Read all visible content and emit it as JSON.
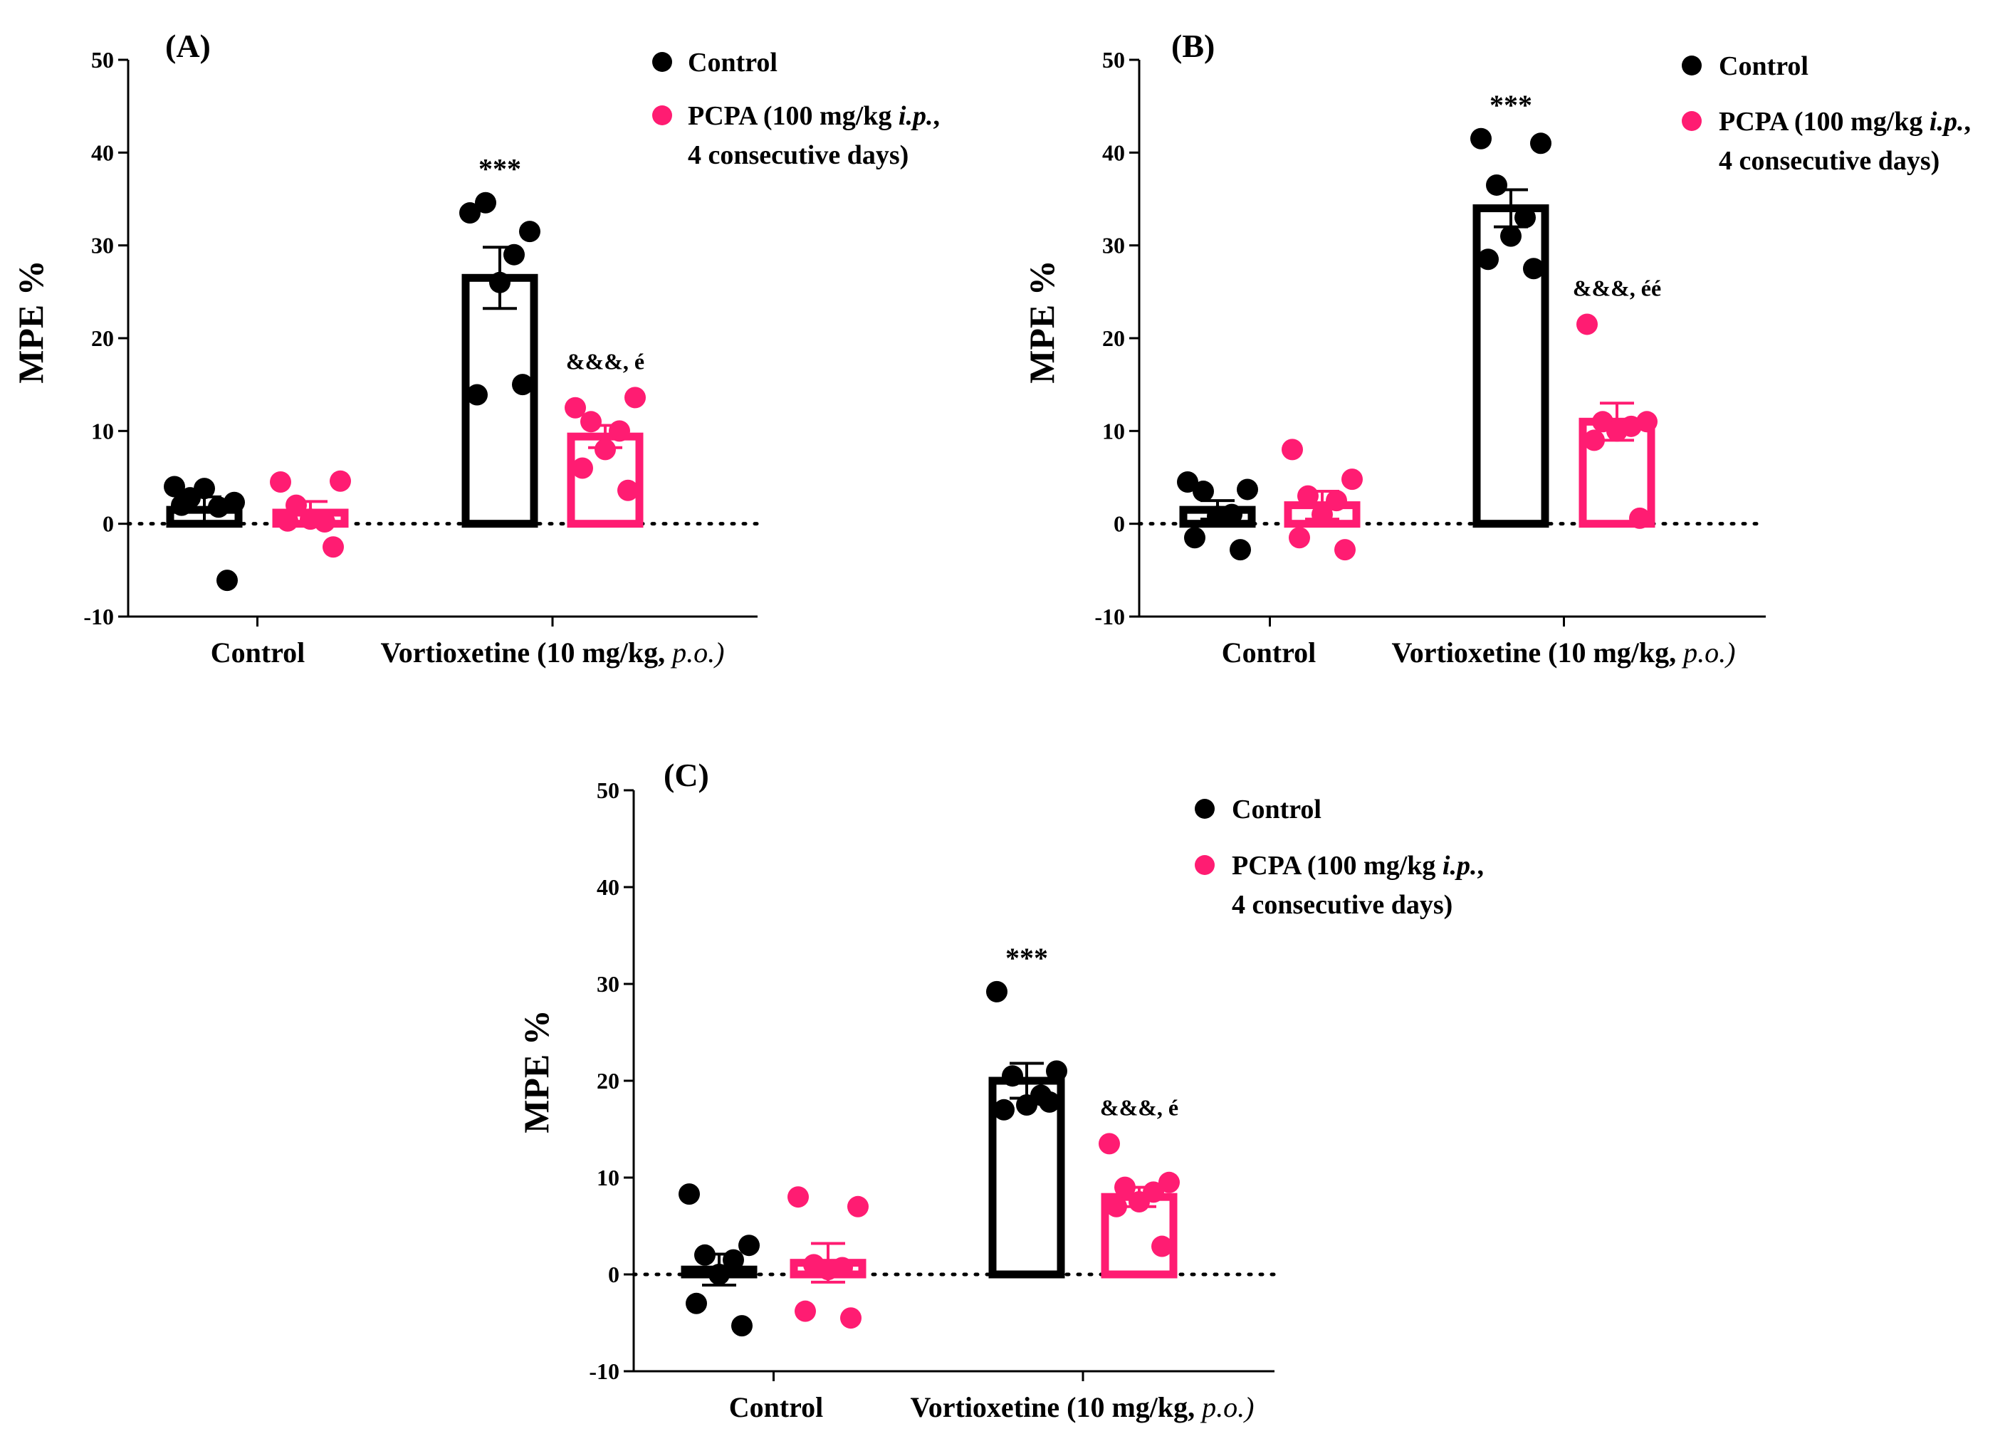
{
  "colors": {
    "control": "#000000",
    "pcpa": "#ff1c72"
  },
  "chart_data": [
    {
      "panel_label": "(A)",
      "type": "bar",
      "ylabel": "MPE %",
      "ylim": [
        -10,
        50
      ],
      "yticks": [
        "50",
        "40",
        "30",
        "20",
        "10",
        "0",
        "-10"
      ],
      "categories": [
        "Control",
        "Vortioxetine (10 mg/kg, "
      ],
      "category_suffix": "p.o.)",
      "series": [
        {
          "name": "Control",
          "means": [
            1.5,
            26.5
          ],
          "sem": [
            1.4,
            3.3
          ],
          "points": [
            [
              4.0,
              2.3,
              2.8,
              1.8,
              3.8,
              2.0,
              -6.1
            ],
            [
              33.5,
              31.5,
              34.6,
              29.0,
              26.0,
              13.9,
              15.0
            ]
          ]
        },
        {
          "name": "PCPA (100 mg/kg i.p., 4 consecutive days)",
          "means": [
            1.2,
            9.4
          ],
          "sem": [
            1.2,
            1.2
          ],
          "points": [
            [
              4.5,
              4.6,
              2.0,
              0.2,
              0.5,
              0.3,
              -2.5
            ],
            [
              12.5,
              13.6,
              11.0,
              10.0,
              8.0,
              6.0,
              3.6
            ]
          ]
        }
      ],
      "annotations": [
        {
          "text": "***",
          "series": 0,
          "category": 1
        },
        {
          "text": "&&&, é",
          "series": 1,
          "category": 1
        }
      ]
    },
    {
      "panel_label": "(B)",
      "type": "bar",
      "ylabel": "MPE %",
      "ylim": [
        -10,
        50
      ],
      "yticks": [
        "50",
        "40",
        "30",
        "20",
        "10",
        "0",
        "-10"
      ],
      "categories": [
        "Control",
        "Vortioxetine (10 mg/kg, "
      ],
      "category_suffix": "p.o.)",
      "series": [
        {
          "name": "Control",
          "means": [
            1.5,
            34.0
          ],
          "sem": [
            1.0,
            2.0
          ],
          "points": [
            [
              4.5,
              3.7,
              3.5,
              1.0,
              0.8,
              -1.5,
              -2.8
            ],
            [
              41.5,
              41.0,
              36.5,
              33.0,
              31.0,
              28.5,
              27.5
            ]
          ]
        },
        {
          "name": "PCPA (100 mg/kg i.p., 4 consecutive days)",
          "means": [
            2.0,
            11.0
          ],
          "sem": [
            1.5,
            2.0
          ],
          "points": [
            [
              8.0,
              4.8,
              3.0,
              2.5,
              1.0,
              -1.5,
              -2.8
            ],
            [
              21.5,
              11.0,
              11.0,
              10.5,
              10.0,
              9.0,
              0.6
            ]
          ]
        }
      ],
      "annotations": [
        {
          "text": "***",
          "series": 0,
          "category": 1
        },
        {
          "text": "&&&, éé",
          "series": 1,
          "category": 1
        }
      ]
    },
    {
      "panel_label": "(C)",
      "type": "bar",
      "ylabel": "MPE %",
      "ylim": [
        -10,
        50
      ],
      "yticks": [
        "50",
        "40",
        "30",
        "20",
        "10",
        "0",
        "-10"
      ],
      "categories": [
        "Control",
        "Vortioxetine (10 mg/kg, "
      ],
      "category_suffix": "p.o.)",
      "series": [
        {
          "name": "Control",
          "means": [
            0.5,
            20.0
          ],
          "sem": [
            1.6,
            1.8
          ],
          "points": [
            [
              8.3,
              3.0,
              2.0,
              1.5,
              0.0,
              -3.0,
              -5.3
            ],
            [
              29.2,
              21.0,
              20.5,
              18.5,
              17.5,
              17.0,
              17.8
            ]
          ]
        },
        {
          "name": "PCPA (100 mg/kg i.p., 4 consecutive days)",
          "means": [
            1.2,
            8.0
          ],
          "sem": [
            2.0,
            1.0
          ],
          "points": [
            [
              8.0,
              7.0,
              1.0,
              0.7,
              0.5,
              -3.8,
              -4.5
            ],
            [
              13.5,
              9.5,
              9.0,
              8.5,
              7.5,
              7.0,
              2.9
            ]
          ]
        }
      ],
      "annotations": [
        {
          "text": "***",
          "series": 0,
          "category": 1
        },
        {
          "text": "&&&, é",
          "series": 1,
          "category": 1
        }
      ]
    }
  ],
  "legend": {
    "control": "Control",
    "pcpa_line1_prefix": "PCPA (100 mg/kg ",
    "pcpa_line1_italic": "i.p.",
    "pcpa_line1_suffix": ",",
    "pcpa_line2": "4 consecutive days)"
  }
}
